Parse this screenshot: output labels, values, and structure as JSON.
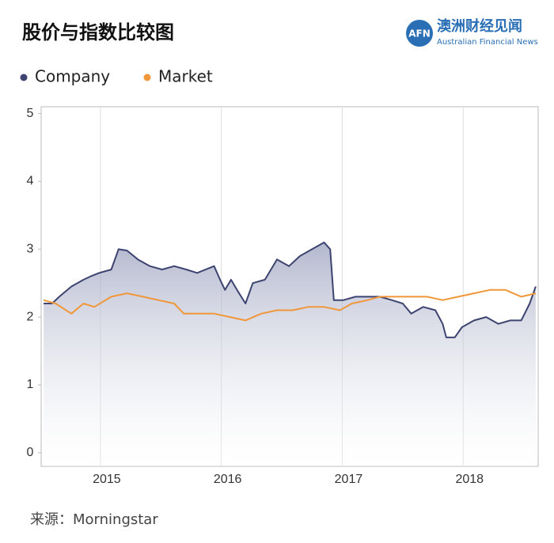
{
  "header": {
    "logo_mark": "AFN",
    "logo_text": "澳洲财经见闻",
    "logo_subtitle": "Australian Financial News"
  },
  "chart_data": {
    "type": "line",
    "title": "股价与指数比较图",
    "source": "来源：Morningstar",
    "xlim": [
      2014.51,
      2018.62
    ],
    "xticks": [
      2015,
      2016,
      2017,
      2018
    ],
    "ylim": [
      -0.2,
      5.1
    ],
    "yticks": [
      0,
      1,
      2,
      3,
      4,
      5
    ],
    "grid": true,
    "series": [
      {
        "name": "Company",
        "color": "#3d4470",
        "area": true,
        "x": [
          2014.53,
          2014.6,
          2014.66,
          2014.76,
          2014.86,
          2014.92,
          2014.99,
          2015.09,
          2015.15,
          2015.22,
          2015.31,
          2015.41,
          2015.51,
          2015.61,
          2015.71,
          2015.8,
          2015.94,
          2015.99,
          2016.03,
          2016.08,
          2016.13,
          2016.2,
          2016.26,
          2016.36,
          2016.46,
          2016.56,
          2016.65,
          2016.75,
          2016.85,
          2016.9,
          2016.93,
          2017.01,
          2017.11,
          2017.21,
          2017.31,
          2017.41,
          2017.5,
          2017.57,
          2017.67,
          2017.77,
          2017.83,
          2017.86,
          2017.93,
          2017.99,
          2018.09,
          2018.19,
          2018.29,
          2018.39,
          2018.48,
          2018.55,
          2018.6
        ],
        "values": [
          2.2,
          2.2,
          2.3,
          2.45,
          2.55,
          2.6,
          2.65,
          2.7,
          3.0,
          2.98,
          2.85,
          2.75,
          2.7,
          2.75,
          2.7,
          2.65,
          2.75,
          2.55,
          2.4,
          2.55,
          2.4,
          2.2,
          2.5,
          2.55,
          2.85,
          2.75,
          2.9,
          3.0,
          3.1,
          3.0,
          2.25,
          2.25,
          2.3,
          2.3,
          2.3,
          2.25,
          2.2,
          2.05,
          2.15,
          2.1,
          1.9,
          1.7,
          1.7,
          1.85,
          1.95,
          2.0,
          1.9,
          1.95,
          1.95,
          2.2,
          2.45
        ]
      },
      {
        "name": "Market",
        "color": "#f0973a",
        "x": [
          2014.53,
          2014.63,
          2014.76,
          2014.86,
          2014.95,
          2015.09,
          2015.22,
          2015.35,
          2015.48,
          2015.61,
          2015.69,
          2015.8,
          2015.94,
          2016.07,
          2016.2,
          2016.33,
          2016.46,
          2016.59,
          2016.72,
          2016.85,
          2016.98,
          2017.08,
          2017.21,
          2017.31,
          2017.44,
          2017.57,
          2017.7,
          2017.83,
          2017.96,
          2018.09,
          2018.22,
          2018.35,
          2018.48,
          2018.6
        ],
        "values": [
          2.25,
          2.2,
          2.05,
          2.2,
          2.15,
          2.3,
          2.35,
          2.3,
          2.25,
          2.2,
          2.05,
          2.05,
          2.05,
          2.0,
          1.95,
          2.05,
          2.1,
          2.1,
          2.15,
          2.15,
          2.1,
          2.2,
          2.25,
          2.3,
          2.3,
          2.3,
          2.3,
          2.25,
          2.3,
          2.35,
          2.4,
          2.4,
          2.3,
          2.35
        ]
      }
    ]
  }
}
